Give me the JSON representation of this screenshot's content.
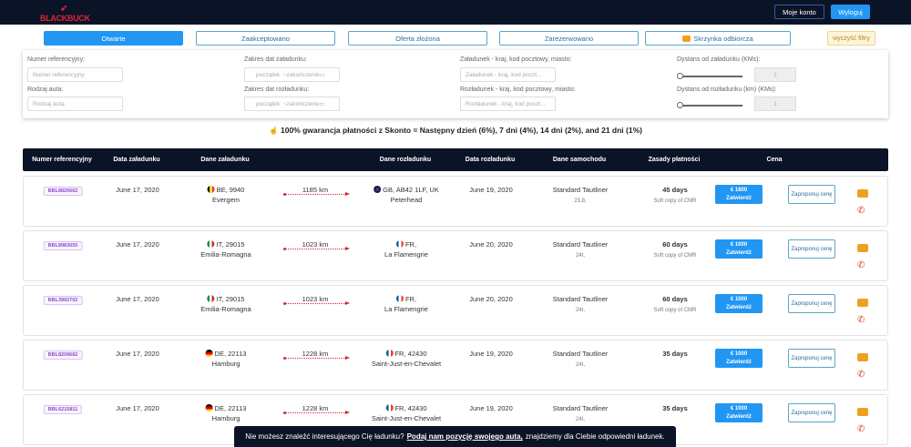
{
  "header": {
    "logo": "BLACKBUCK",
    "account": "Moje konto",
    "logout": "Wyloguj"
  },
  "tabs": [
    {
      "label": "Otwarte",
      "active": true
    },
    {
      "label": "Zaakceptowano"
    },
    {
      "label": "Oferta złożona"
    },
    {
      "label": "Zarezerwowano"
    },
    {
      "label": "Skrzynka odbiorcza",
      "icon": "inbox-icon"
    }
  ],
  "clear_filters": "wyczyść filtry",
  "filters": {
    "ref_label": "Numer referencyjny:",
    "ref_placeholder": "Numer referencyjny",
    "vehicle_label": "Rodzaj auta:",
    "vehicle_placeholder": "Rodzaj auta",
    "load_dates_label": "Zakres dat załadunku:",
    "unload_dates_label": "Zakres dat rozładunku:",
    "date_start": "początek",
    "date_end": "~zakończenie",
    "load_place_label": "Załadunek - kraj, kod pocztowy, miasto:",
    "load_place_placeholder": "Załadunek - kraj, kod poczt...",
    "unload_place_label": "Rozładunek - kraj, kod pocztowy, miasto:",
    "unload_place_placeholder": "Rozładunek - kraj, kod poczt...",
    "load_dist_label": "Dystans od załadunku (KMs):",
    "unload_dist_label": "Dystans od rozładunku (km) (KMs):",
    "load_dist_value": "1",
    "unload_dist_value": "1"
  },
  "guarantee": "100% gwarancja płatności z Skonto = Następny dzień (6%), 7 dni (4%), 14 dni (2%), and 21 dni (1%)",
  "columns": [
    "Numer referencyjny",
    "Data załadunku",
    "Dane załadunku",
    "Dane rozładunku",
    "Data rozładunku",
    "Dane samochodu",
    "Zasady płatności",
    "Cena"
  ],
  "rows": [
    {
      "ref": "BBL8826662",
      "load_date": "June 17, 2020",
      "load_flag": "BE",
      "load_loc": "BE, 9940",
      "load_city": "Evergem",
      "distance": "1185 km",
      "unload_flag": "GB",
      "unload_loc": "GB, AB42 1LF, UK",
      "unload_city": "Peterhead",
      "unload_date": "June 19, 2020",
      "vehicle": "Standard Tautliner",
      "capacity": "23,8,",
      "payment": "45 days",
      "payment_note": "Soft copy of CMR",
      "price": "€ 1800",
      "confirm": "Zatwierdź",
      "propose": "Zaproponuj cenę"
    },
    {
      "ref": "BBL8983055",
      "load_date": "June 17, 2020",
      "load_flag": "IT",
      "load_loc": "IT, 29015",
      "load_city": "Emilia-Romagna",
      "distance": "1023 km",
      "unload_flag": "FR",
      "unload_loc": "FR,",
      "unload_city": "La Flamengrie",
      "unload_date": "June 20, 2020",
      "vehicle": "Standard Tautliner",
      "capacity": "24t,",
      "payment": "60 days",
      "payment_note": "Soft copy of CMR",
      "price": "€ 1000",
      "confirm": "Zatwierdź",
      "propose": "Zaproponuj cenę"
    },
    {
      "ref": "BBL3992702",
      "load_date": "June 17, 2020",
      "load_flag": "IT",
      "load_loc": "IT, 29015",
      "load_city": "Emilia-Romagna",
      "distance": "1023 km",
      "unload_flag": "FR",
      "unload_loc": "FR,",
      "unload_city": "La Flamengrie",
      "unload_date": "June 20, 2020",
      "vehicle": "Standard Tautliner",
      "capacity": "24t,",
      "payment": "60 days",
      "payment_note": "Soft copy of CMR",
      "price": "€ 1000",
      "confirm": "Zatwierdź",
      "propose": "Zaproponuj cenę"
    },
    {
      "ref": "BBL8209682",
      "load_date": "June 17, 2020",
      "load_flag": "DE",
      "load_loc": "DE, 22113",
      "load_city": "Hamburg",
      "distance": "1228 km",
      "unload_flag": "FR",
      "unload_loc": "FR, 42430",
      "unload_city": "Saint-Just-en-Chevalet",
      "unload_date": "June 19, 2020",
      "vehicle": "Standard Tautliner",
      "capacity": "24t,",
      "payment": "35 days",
      "payment_note": "",
      "price": "€ 1000",
      "confirm": "Zatwierdź",
      "propose": "Zaproponuj cenę"
    },
    {
      "ref": "BBL6215811",
      "load_date": "June 17, 2020",
      "load_flag": "DE",
      "load_loc": "DE, 22113",
      "load_city": "Hamburg",
      "distance": "1228 km",
      "unload_flag": "FR",
      "unload_loc": "FR, 42430",
      "unload_city": "Saint-Just-en-Chevalet",
      "unload_date": "June 19, 2020",
      "vehicle": "Standard Tautliner",
      "capacity": "24t,",
      "payment": "35 days",
      "payment_note": "",
      "price": "€ 1000",
      "confirm": "Zatwierdź",
      "propose": "Zaproponuj cenę"
    }
  ],
  "banner": {
    "before": "Nie możesz znaleźć interesującego Cię ładunku?",
    "link": "Podaj nam pozycję swojego auta,",
    "after": "znajdziemy dla Ciebie odpowiedni ładunek."
  },
  "colors": {
    "navy": "#0b1426",
    "primary": "#2196f3",
    "accent": "#e0223a"
  }
}
